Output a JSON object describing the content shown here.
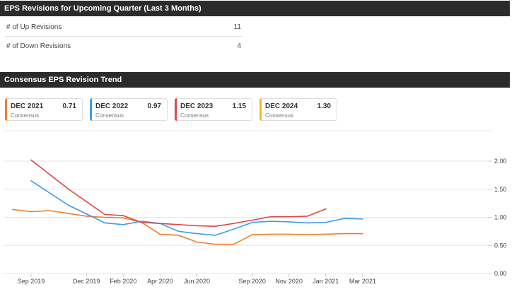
{
  "revisions": {
    "title": "EPS Revisions for Upcoming Quarter (Last 3 Months)",
    "rows": [
      {
        "label": "# of Up Revisions",
        "value": "11"
      },
      {
        "label": "# of Down Revisions",
        "value": "4"
      }
    ]
  },
  "trend": {
    "title": "Consensus EPS Revision Trend",
    "legend": [
      {
        "name": "DEC 2021",
        "value": "0.71",
        "sub": "Consensus",
        "color": "#f07f2f"
      },
      {
        "name": "DEC 2022",
        "value": "0.97",
        "sub": "Consensus",
        "color": "#3d9be9"
      },
      {
        "name": "DEC 2023",
        "value": "1.15",
        "sub": "Consensus",
        "color": "#e04646"
      },
      {
        "name": "DEC 2024",
        "value": "1.30",
        "sub": "Consensus",
        "color": "#f2b632"
      }
    ]
  },
  "chart_data": {
    "type": "line",
    "title": "Consensus EPS Revision Trend",
    "x_labels": [
      "Sep 2019",
      "Dec 2019",
      "Feb 2020",
      "Apr 2020",
      "Jun 2020",
      "Sep 2020",
      "Nov 2020",
      "Jan 2021",
      "Mar 2021"
    ],
    "x_label_months": [
      0,
      3,
      5,
      7,
      9,
      12,
      14,
      16,
      18
    ],
    "y_ticks": [
      "0.00",
      "0.50",
      "1.00",
      "1.50",
      "2.00"
    ],
    "ylim": [
      0,
      2.0
    ],
    "series": [
      {
        "name": "DEC 2021",
        "color": "#f07f2f",
        "points": [
          [
            -1,
            1.14
          ],
          [
            0,
            1.1
          ],
          [
            1,
            1.12
          ],
          [
            2,
            1.07
          ],
          [
            3,
            1.02
          ],
          [
            4,
            1.0
          ],
          [
            5,
            0.99
          ],
          [
            6,
            0.91
          ],
          [
            7,
            0.7
          ],
          [
            8,
            0.68
          ],
          [
            9,
            0.56
          ],
          [
            10,
            0.52
          ],
          [
            11,
            0.52
          ],
          [
            12,
            0.69
          ],
          [
            13,
            0.7
          ],
          [
            14,
            0.7
          ],
          [
            15,
            0.69
          ],
          [
            16,
            0.7
          ],
          [
            17,
            0.71
          ],
          [
            18,
            0.71
          ]
        ]
      },
      {
        "name": "DEC 2022",
        "color": "#3d9be9",
        "points": [
          [
            0,
            1.65
          ],
          [
            2,
            1.22
          ],
          [
            4,
            0.9
          ],
          [
            5,
            0.87
          ],
          [
            6,
            0.93
          ],
          [
            7,
            0.89
          ],
          [
            8,
            0.75
          ],
          [
            9,
            0.71
          ],
          [
            10,
            0.68
          ],
          [
            11,
            0.79
          ],
          [
            12,
            0.91
          ],
          [
            13,
            0.93
          ],
          [
            14,
            0.92
          ],
          [
            15,
            0.9
          ],
          [
            16,
            0.91
          ],
          [
            17,
            0.98
          ],
          [
            18,
            0.97
          ]
        ]
      },
      {
        "name": "DEC 2023",
        "color": "#e04646",
        "points": [
          [
            0,
            2.02
          ],
          [
            2,
            1.51
          ],
          [
            4,
            1.05
          ],
          [
            5,
            1.03
          ],
          [
            6,
            0.91
          ],
          [
            7,
            0.89
          ],
          [
            8,
            0.87
          ],
          [
            9,
            0.85
          ],
          [
            10,
            0.84
          ],
          [
            11,
            0.89
          ],
          [
            12,
            0.95
          ],
          [
            13,
            1.01
          ],
          [
            14,
            1.01
          ],
          [
            15,
            1.02
          ],
          [
            16,
            1.15
          ]
        ]
      }
    ]
  }
}
